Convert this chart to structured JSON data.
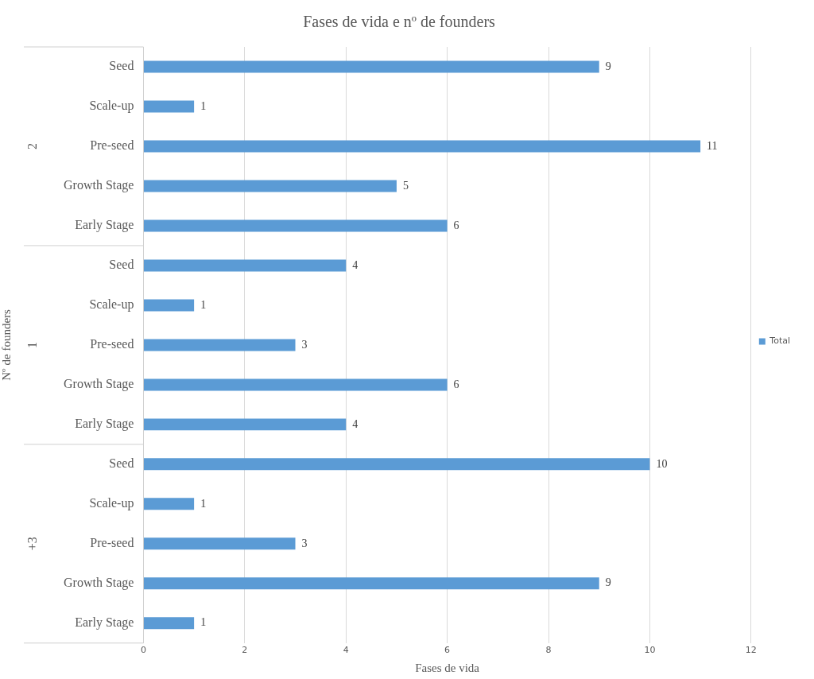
{
  "chart_data": {
    "type": "bar",
    "orientation": "horizontal",
    "title": "Fases de vida e nº de founders",
    "xlabel": "Fases de vida",
    "ylabel": "Nº de founders",
    "categories": [
      "Seed",
      "Scale-up",
      "Pre-seed",
      "Growth Stage",
      "Early Stage",
      "Seed",
      "Scale-up",
      "Pre-seed",
      "Growth Stage",
      "Early Stage",
      "Seed",
      "Scale-up",
      "Pre-seed",
      "Growth Stage",
      "Early Stage"
    ],
    "series": [
      {
        "name": "Total",
        "color": "#5b9bd5",
        "values": [
          9,
          1,
          11,
          5,
          6,
          4,
          1,
          3,
          6,
          4,
          10,
          1,
          3,
          9,
          1
        ]
      }
    ],
    "annotations": [
      "2",
      "1",
      "+3"
    ],
    "xlim": [
      0,
      12
    ],
    "xticks": [
      0,
      2,
      4,
      6,
      8,
      10,
      12
    ],
    "grid": "x",
    "legend": "right",
    "data_labels": true
  }
}
